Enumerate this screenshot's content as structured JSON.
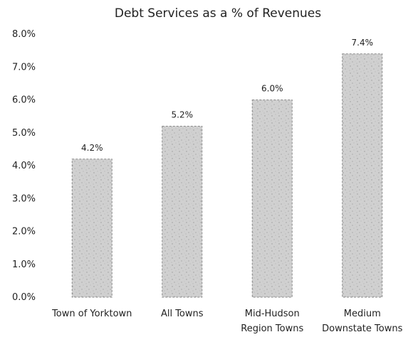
{
  "chart_data": {
    "type": "bar",
    "title": "Debt Services as a % of Revenues",
    "categories": [
      [
        "Town of Yorktown"
      ],
      [
        "All Towns"
      ],
      [
        "Mid-Hudson",
        "Region Towns"
      ],
      [
        "Medium",
        "Downstate Towns"
      ]
    ],
    "values": [
      4.2,
      5.2,
      6.0,
      7.4
    ],
    "data_labels": [
      "4.2%",
      "5.2%",
      "6.0%",
      "7.4%"
    ],
    "y_ticks": [
      "0.0%",
      "1.0%",
      "2.0%",
      "3.0%",
      "4.0%",
      "5.0%",
      "6.0%",
      "7.0%",
      "8.0%"
    ],
    "ylim": [
      0,
      8
    ],
    "xlabel": "",
    "ylabel": "",
    "grid": false,
    "legend": "none",
    "bar_color": "#cfcfcf",
    "bar_edge_color": "#8a8a8a"
  }
}
